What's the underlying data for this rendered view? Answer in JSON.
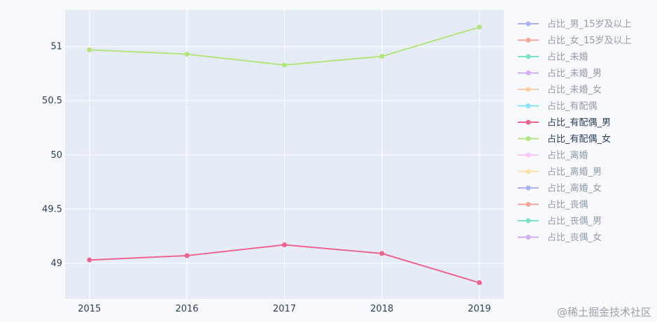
{
  "chart_data": {
    "type": "line",
    "x": [
      2015,
      2016,
      2017,
      2018,
      2019
    ],
    "xlim": [
      2014.75,
      2019.25
    ],
    "ylim": [
      48.67,
      51.34
    ],
    "yticks": [
      49,
      49.5,
      50,
      50.5,
      51
    ],
    "ytick_labels": [
      "49",
      "49.5",
      "50",
      "50.5",
      "51"
    ],
    "xtick_labels": [
      "2015",
      "2016",
      "2017",
      "2018",
      "2019"
    ],
    "grid": true,
    "legend_position": "right",
    "series": [
      {
        "name": "占比_有配偶_男",
        "color": "#ef6391",
        "visible": true,
        "values": [
          49.03,
          49.07,
          49.17,
          49.09,
          48.82
        ]
      },
      {
        "name": "占比_有配偶_女",
        "color": "#b5e47c",
        "visible": true,
        "values": [
          50.97,
          50.93,
          50.83,
          50.91,
          51.18
        ]
      }
    ],
    "legend": [
      {
        "name": "占比_男_15岁及以上",
        "color": "#636efa",
        "visible": false
      },
      {
        "name": "占比_女_15岁及以上",
        "color": "#ef553b",
        "visible": false
      },
      {
        "name": "占比_未婚",
        "color": "#00cc96",
        "visible": false
      },
      {
        "name": "占比_未婚_男",
        "color": "#ab63fa",
        "visible": false
      },
      {
        "name": "占比_未婚_女",
        "color": "#ffa15a",
        "visible": false
      },
      {
        "name": "占比_有配偶",
        "color": "#19d3f3",
        "visible": false
      },
      {
        "name": "占比_有配偶_男",
        "color": "#ef6391",
        "visible": true
      },
      {
        "name": "占比_有配偶_女",
        "color": "#b5e47c",
        "visible": true
      },
      {
        "name": "占比_离婚",
        "color": "#ff97ff",
        "visible": false
      },
      {
        "name": "占比_离婚_男",
        "color": "#fecb52",
        "visible": false
      },
      {
        "name": "占比_离婚_女",
        "color": "#636efa",
        "visible": false
      },
      {
        "name": "占比_丧偶",
        "color": "#ef553b",
        "visible": false
      },
      {
        "name": "占比_丧偶_男",
        "color": "#00cc96",
        "visible": false
      },
      {
        "name": "占比_丧偶_女",
        "color": "#ab63fa",
        "visible": false
      }
    ]
  },
  "watermark": "@稀土掘金技术社区"
}
